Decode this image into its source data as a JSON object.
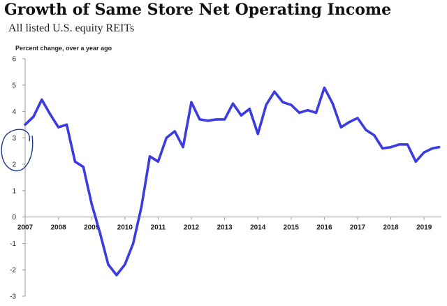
{
  "chart_data": {
    "type": "line",
    "title": "Growth of Same Store Net Operating Income",
    "subtitle": "All listed U.S. equity REITs",
    "ylabel": "Percent change, over a year ago",
    "xlabel": "",
    "ylim": [
      -3,
      6
    ],
    "yticks": [
      6,
      5,
      4,
      3,
      2,
      1,
      0,
      -1,
      -2,
      -3
    ],
    "xticks": [
      "2007",
      "2008",
      "2009",
      "2010",
      "2011",
      "2012",
      "2013",
      "2014",
      "2015",
      "2016",
      "2017",
      "2018",
      "2019"
    ],
    "grid": false,
    "line_color": "#3a3be0",
    "annotation_color": "#1f3a8a",
    "annotation": "hand-drawn circle around y-axis 2 to 3",
    "series": [
      {
        "x": [
          2007.0,
          2007.25,
          2007.5,
          2007.75,
          2008.0,
          2008.25,
          2008.5,
          2008.75,
          2009.0,
          2009.25,
          2009.5,
          2009.75,
          2010.0,
          2010.25,
          2010.5,
          2010.75,
          2011.0,
          2011.25,
          2011.5,
          2011.75,
          2012.0,
          2012.25,
          2012.5,
          2012.75,
          2013.0,
          2013.25,
          2013.5,
          2013.75,
          2014.0,
          2014.25,
          2014.5,
          2014.75,
          2015.0,
          2015.25,
          2015.5,
          2015.75,
          2016.0,
          2016.25,
          2016.5,
          2016.75,
          2017.0,
          2017.25,
          2017.5,
          2017.75,
          2018.0,
          2018.25,
          2018.5,
          2018.75,
          2019.0,
          2019.25,
          2019.45
        ],
        "values": [
          3.5,
          3.8,
          4.45,
          3.9,
          3.4,
          3.5,
          2.1,
          1.9,
          0.5,
          -0.6,
          -1.8,
          -2.2,
          -1.8,
          -1.0,
          0.4,
          2.3,
          2.1,
          3.0,
          3.25,
          2.65,
          4.35,
          3.7,
          3.65,
          3.7,
          3.7,
          4.3,
          3.85,
          4.1,
          3.15,
          4.25,
          4.75,
          4.35,
          4.25,
          3.95,
          4.05,
          3.95,
          4.9,
          4.3,
          3.4,
          3.6,
          3.75,
          3.3,
          3.1,
          2.6,
          2.65,
          2.75,
          2.75,
          2.1,
          2.45,
          2.6,
          2.65
        ]
      }
    ]
  }
}
